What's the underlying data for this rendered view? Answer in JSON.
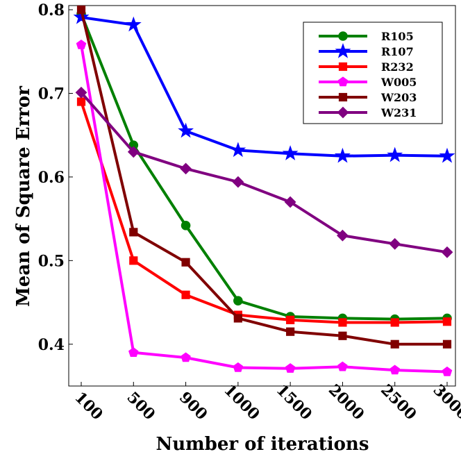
{
  "chart_data": {
    "type": "line",
    "xlabel": "Number of iterations",
    "ylabel": "Mean of Square Error",
    "categories": [
      "100",
      "500",
      "900",
      "1000",
      "1500",
      "2000",
      "2500",
      "3000"
    ],
    "ylim": [
      0.35,
      0.805
    ],
    "yticks": [
      0.4,
      0.5,
      0.6,
      0.7,
      0.8
    ],
    "grid": false,
    "legend": "upper right",
    "series": [
      {
        "name": "R105",
        "color": "#008000",
        "marker": "circle",
        "values": [
          0.795,
          0.638,
          0.542,
          0.452,
          0.433,
          0.431,
          0.43,
          0.431
        ]
      },
      {
        "name": "R107",
        "color": "#0000ff",
        "marker": "star",
        "values": [
          0.791,
          0.782,
          0.655,
          0.632,
          0.628,
          0.625,
          0.626,
          0.625
        ]
      },
      {
        "name": "R232",
        "color": "#ff0000",
        "marker": "square",
        "values": [
          0.69,
          0.5,
          0.459,
          0.435,
          0.429,
          0.426,
          0.426,
          0.427
        ]
      },
      {
        "name": "W005",
        "color": "#ff00ff",
        "marker": "pentagon",
        "values": [
          0.758,
          0.39,
          0.384,
          0.372,
          0.371,
          0.373,
          0.369,
          0.367
        ]
      },
      {
        "name": "W203",
        "color": "#800000",
        "marker": "square",
        "values": [
          0.8,
          0.534,
          0.498,
          0.431,
          0.415,
          0.41,
          0.4,
          0.4
        ]
      },
      {
        "name": "W231",
        "color": "#800080",
        "marker": "diamond",
        "values": [
          0.701,
          0.63,
          0.61,
          0.594,
          0.57,
          0.53,
          0.52,
          0.51
        ]
      }
    ]
  }
}
